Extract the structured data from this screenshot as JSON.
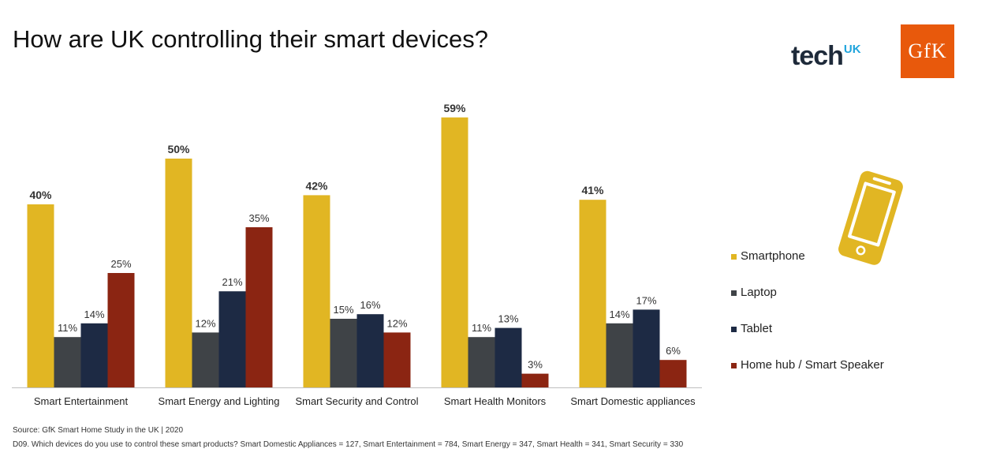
{
  "title": "How are UK controlling their smart devices?",
  "logos": {
    "techuk_main": "tech",
    "techuk_sup": "UK",
    "gfk": "GfK"
  },
  "icons": {
    "legend_icon": "smartphone-icon"
  },
  "colors": {
    "Smartphone": "#e1b623",
    "Laptop": "#3f4347",
    "Tablet": "#1d2a44",
    "Home hub / Smart Speaker": "#8b2512",
    "gfk_orange": "#e8590c",
    "techuk_blue": "#1fa4dc"
  },
  "chart_data": {
    "type": "bar",
    "categories": [
      "Smart Entertainment",
      "Smart Energy and Lighting",
      "Smart Security and Control",
      "Smart Health Monitors",
      "Smart Domestic appliances"
    ],
    "series": [
      {
        "name": "Smartphone",
        "values": [
          40,
          50,
          42,
          59,
          41
        ]
      },
      {
        "name": "Laptop",
        "values": [
          11,
          12,
          15,
          11,
          14
        ]
      },
      {
        "name": "Tablet",
        "values": [
          14,
          21,
          16,
          13,
          17
        ]
      },
      {
        "name": "Home hub / Smart Speaker",
        "values": [
          25,
          35,
          12,
          3,
          6
        ]
      }
    ],
    "value_suffix": "%",
    "ylim": [
      0,
      60
    ],
    "grid": false,
    "legend_position": "right"
  },
  "footnotes": [
    "Source: GfK Smart Home Study in the UK | 2020",
    "D09. Which devices do you use to control these smart products? Smart Domestic Appliances = 127, Smart Entertainment = 784, Smart Energy = 347, Smart Health = 341, Smart Security = 330"
  ]
}
